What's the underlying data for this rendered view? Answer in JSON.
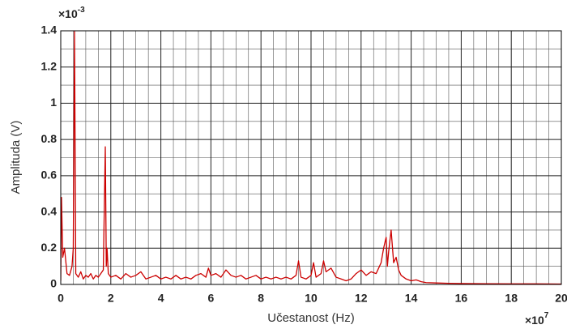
{
  "chart_data": {
    "type": "line",
    "xlabel": "Učestanost (Hz)",
    "ylabel": "Amplituda (V)",
    "x_exponent": {
      "base": "×10",
      "power": "7"
    },
    "y_exponent": {
      "base": "×10",
      "power": "-3"
    },
    "xlim": [
      0,
      20
    ],
    "ylim": [
      0,
      1.4
    ],
    "xticks": [
      0,
      2,
      4,
      6,
      8,
      10,
      12,
      14,
      16,
      18,
      20
    ],
    "yticks": [
      0,
      0.2,
      0.4,
      0.6,
      0.8,
      1,
      1.2,
      1.4
    ],
    "grid": true,
    "minor_grid": {
      "x": 4,
      "y": 2
    },
    "series": [
      {
        "name": "Amplituda",
        "color": "#cc0000",
        "x": [
          0,
          0.03,
          0.08,
          0.15,
          0.25,
          0.35,
          0.45,
          0.5,
          0.55,
          0.6,
          0.7,
          0.8,
          0.9,
          1.0,
          1.1,
          1.2,
          1.3,
          1.4,
          1.5,
          1.6,
          1.7,
          1.78,
          1.82,
          1.85,
          1.9,
          2.0,
          2.2,
          2.4,
          2.6,
          2.8,
          3.0,
          3.2,
          3.4,
          3.6,
          3.8,
          4.0,
          4.2,
          4.4,
          4.6,
          4.8,
          5.0,
          5.2,
          5.4,
          5.6,
          5.8,
          5.9,
          6.0,
          6.2,
          6.4,
          6.6,
          6.8,
          7.0,
          7.2,
          7.4,
          7.6,
          7.8,
          8.0,
          8.2,
          8.4,
          8.6,
          8.8,
          9.0,
          9.2,
          9.4,
          9.5,
          9.6,
          9.8,
          10.0,
          10.1,
          10.2,
          10.4,
          10.5,
          10.6,
          10.8,
          11.0,
          11.2,
          11.4,
          11.6,
          11.8,
          12.0,
          12.2,
          12.4,
          12.6,
          12.8,
          12.9,
          13.0,
          13.05,
          13.1,
          13.2,
          13.3,
          13.4,
          13.5,
          13.6,
          13.8,
          14.0,
          14.2,
          14.4,
          14.6,
          15,
          15.5,
          16,
          17,
          18,
          19,
          20
        ],
        "values": [
          0.02,
          0.48,
          0.15,
          0.2,
          0.06,
          0.05,
          0.1,
          0.2,
          1.4,
          0.06,
          0.04,
          0.07,
          0.03,
          0.05,
          0.04,
          0.06,
          0.03,
          0.05,
          0.04,
          0.06,
          0.08,
          0.76,
          0.1,
          0.2,
          0.06,
          0.04,
          0.05,
          0.03,
          0.06,
          0.04,
          0.05,
          0.07,
          0.03,
          0.04,
          0.05,
          0.03,
          0.04,
          0.03,
          0.05,
          0.03,
          0.04,
          0.03,
          0.05,
          0.06,
          0.04,
          0.09,
          0.05,
          0.06,
          0.04,
          0.08,
          0.05,
          0.04,
          0.05,
          0.03,
          0.04,
          0.05,
          0.03,
          0.04,
          0.03,
          0.04,
          0.03,
          0.04,
          0.03,
          0.05,
          0.13,
          0.04,
          0.03,
          0.05,
          0.12,
          0.04,
          0.06,
          0.13,
          0.07,
          0.09,
          0.04,
          0.03,
          0.02,
          0.03,
          0.06,
          0.08,
          0.05,
          0.07,
          0.06,
          0.12,
          0.2,
          0.26,
          0.1,
          0.18,
          0.3,
          0.12,
          0.15,
          0.08,
          0.05,
          0.03,
          0.02,
          0.025,
          0.015,
          0.01,
          0.008,
          0.006,
          0.005,
          0.004,
          0.003,
          0.003,
          0.002
        ]
      }
    ]
  }
}
